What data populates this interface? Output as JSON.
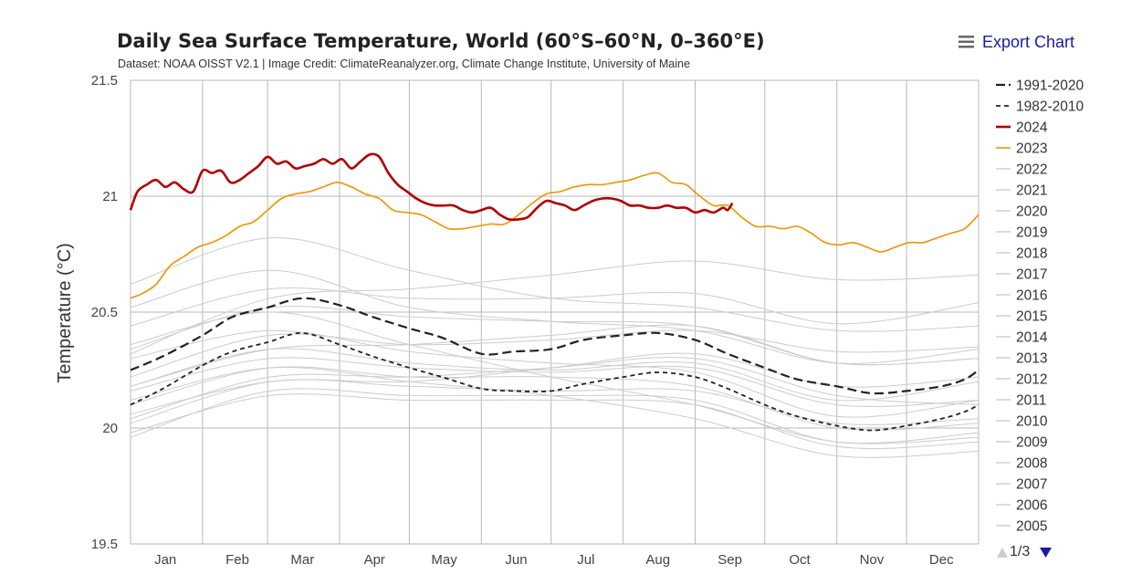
{
  "header": {
    "title": "Daily Sea Surface Temperature, World (60°S–60°N, 0–360°E)",
    "subtitle": "Dataset: NOAA OISST V2.1 | Image Credit: ClimateReanalyzer.org, Climate Change Institute, University of Maine",
    "export_label": "Export Chart",
    "menu_icon": "hamburger-menu-icon"
  },
  "legend": {
    "page_text": "1/3",
    "up_icon": "triangle-up-icon",
    "down_icon": "triangle-down-icon"
  },
  "colors": {
    "y2024": "#b30000",
    "y2023": "#f29200",
    "climatology": "#222222",
    "other_years": "#cccccc",
    "grid": "#b9b9b9",
    "link": "#1a1aa8"
  },
  "chart_data": {
    "type": "line",
    "title": "Daily Sea Surface Temperature, World (60°S–60°N, 0–360°E)",
    "subtitle": "Dataset: NOAA OISST V2.1 | Image Credit: ClimateReanalyzer.org, Climate Change Institute, University of Maine",
    "xlabel": "",
    "ylabel": "Temperature (°C)",
    "x_unit": "day of year",
    "xlim": [
      1,
      366
    ],
    "ylim": [
      19.5,
      21.5
    ],
    "yticks": [
      19.5,
      20,
      20.5,
      21,
      21.5
    ],
    "yticklabels": [
      "19.5",
      "20",
      "20.5",
      "21",
      "21.5"
    ],
    "xticklabels": [
      "Jan",
      "Feb",
      "Mar",
      "Apr",
      "May",
      "Jun",
      "Jul",
      "Aug",
      "Sep",
      "Oct",
      "Nov",
      "Dec"
    ],
    "xtick_days": [
      16,
      47,
      75,
      106,
      136,
      167,
      197,
      228,
      259,
      289,
      320,
      350
    ],
    "month_boundaries": [
      32,
      60,
      91,
      121,
      152,
      182,
      213,
      244,
      274,
      305,
      335
    ],
    "grid": true,
    "legend_position": "right",
    "series": [
      {
        "name": "1991-2020",
        "style": "dashed-long",
        "x": [
          1,
          15,
          32,
          45,
          60,
          75,
          91,
          105,
          121,
          135,
          152,
          166,
          182,
          196,
          213,
          228,
          244,
          258,
          274,
          288,
          305,
          320,
          335,
          350,
          360,
          366
        ],
        "y": [
          20.25,
          20.31,
          20.4,
          20.48,
          20.52,
          20.56,
          20.53,
          20.48,
          20.43,
          20.39,
          20.32,
          20.33,
          20.34,
          20.38,
          20.4,
          20.41,
          20.38,
          20.32,
          20.26,
          20.21,
          20.18,
          20.15,
          20.16,
          20.18,
          20.21,
          20.25
        ]
      },
      {
        "name": "1982-2010",
        "style": "dashed-short",
        "x": [
          1,
          15,
          32,
          45,
          60,
          75,
          91,
          105,
          121,
          135,
          152,
          166,
          182,
          196,
          213,
          228,
          244,
          258,
          274,
          288,
          305,
          320,
          335,
          350,
          360,
          366
        ],
        "y": [
          20.1,
          20.17,
          20.27,
          20.33,
          20.37,
          20.41,
          20.36,
          20.31,
          20.26,
          20.22,
          20.17,
          20.16,
          20.16,
          20.19,
          20.22,
          20.24,
          20.22,
          20.17,
          20.1,
          20.05,
          20.01,
          19.99,
          20.01,
          20.04,
          20.07,
          20.1
        ]
      },
      {
        "name": "2024",
        "x": [
          1,
          4,
          8,
          12,
          16,
          20,
          24,
          28,
          32,
          36,
          40,
          44,
          48,
          52,
          56,
          60,
          64,
          68,
          72,
          76,
          80,
          84,
          88,
          92,
          96,
          100,
          104,
          108,
          112,
          116,
          120,
          124,
          128,
          132,
          136,
          140,
          144,
          148,
          152,
          156,
          160,
          164,
          168,
          172,
          176,
          180,
          184,
          188,
          192,
          196,
          200,
          204,
          208,
          212,
          216,
          220,
          224,
          228,
          232,
          236,
          240,
          244,
          248,
          252,
          256,
          258,
          260
        ],
        "y": [
          20.94,
          21.02,
          21.05,
          21.07,
          21.04,
          21.06,
          21.03,
          21.02,
          21.11,
          21.1,
          21.11,
          21.06,
          21.07,
          21.1,
          21.13,
          21.17,
          21.14,
          21.15,
          21.12,
          21.13,
          21.14,
          21.16,
          21.14,
          21.16,
          21.12,
          21.15,
          21.18,
          21.17,
          21.1,
          21.05,
          21.02,
          20.99,
          20.97,
          20.96,
          20.96,
          20.96,
          20.94,
          20.93,
          20.94,
          20.95,
          20.92,
          20.9,
          20.9,
          20.91,
          20.95,
          20.98,
          20.97,
          20.96,
          20.94,
          20.96,
          20.98,
          20.99,
          20.99,
          20.98,
          20.96,
          20.96,
          20.95,
          20.95,
          20.96,
          20.95,
          20.95,
          20.93,
          20.94,
          20.93,
          20.95,
          20.94,
          20.97
        ]
      },
      {
        "name": "2023",
        "x": [
          1,
          6,
          12,
          18,
          24,
          30,
          36,
          42,
          48,
          54,
          60,
          66,
          72,
          78,
          84,
          90,
          96,
          102,
          108,
          114,
          120,
          126,
          132,
          138,
          144,
          150,
          156,
          162,
          168,
          174,
          180,
          186,
          192,
          198,
          204,
          210,
          216,
          222,
          228,
          234,
          240,
          246,
          252,
          258,
          264,
          270,
          276,
          282,
          288,
          294,
          300,
          306,
          312,
          318,
          324,
          330,
          336,
          342,
          348,
          354,
          360,
          366
        ],
        "y": [
          20.56,
          20.58,
          20.62,
          20.7,
          20.74,
          20.78,
          20.8,
          20.83,
          20.87,
          20.89,
          20.94,
          20.99,
          21.01,
          21.02,
          21.04,
          21.06,
          21.04,
          21.01,
          20.99,
          20.94,
          20.93,
          20.92,
          20.89,
          20.86,
          20.86,
          20.87,
          20.88,
          20.88,
          20.92,
          20.97,
          21.01,
          21.02,
          21.04,
          21.05,
          21.05,
          21.06,
          21.07,
          21.09,
          21.1,
          21.06,
          21.05,
          21.0,
          20.96,
          20.96,
          20.91,
          20.87,
          20.87,
          20.86,
          20.87,
          20.84,
          20.8,
          20.79,
          20.8,
          20.78,
          20.76,
          20.78,
          20.8,
          20.8,
          20.82,
          20.84,
          20.86,
          20.92
        ]
      },
      {
        "name": "2022",
        "x": [
          1,
          61,
          121,
          182,
          244,
          305,
          366
        ],
        "y": [
          20.3,
          20.42,
          20.33,
          20.28,
          20.24,
          20.05,
          20.12
        ]
      },
      {
        "name": "2021",
        "x": [
          1,
          61,
          121,
          182,
          244,
          305,
          366
        ],
        "y": [
          20.18,
          20.34,
          20.28,
          20.25,
          20.28,
          20.12,
          20.2
        ]
      },
      {
        "name": "2020",
        "x": [
          1,
          61,
          121,
          182,
          244,
          305,
          366
        ],
        "y": [
          20.52,
          20.68,
          20.52,
          20.46,
          20.42,
          20.28,
          20.34
        ]
      },
      {
        "name": "2019",
        "x": [
          1,
          61,
          121,
          182,
          244,
          305,
          366
        ],
        "y": [
          20.44,
          20.6,
          20.56,
          20.56,
          20.58,
          20.45,
          20.54
        ]
      },
      {
        "name": "2018",
        "x": [
          1,
          61,
          121,
          182,
          244,
          305,
          366
        ],
        "y": [
          20.22,
          20.4,
          20.36,
          20.38,
          20.42,
          20.33,
          20.35
        ]
      },
      {
        "name": "2017",
        "x": [
          1,
          61,
          121,
          182,
          244,
          305,
          366
        ],
        "y": [
          20.34,
          20.52,
          20.48,
          20.46,
          20.44,
          20.28,
          20.3
        ]
      },
      {
        "name": "2016",
        "x": [
          1,
          61,
          121,
          182,
          244,
          305,
          366
        ],
        "y": [
          20.62,
          20.82,
          20.68,
          20.56,
          20.52,
          20.42,
          20.44
        ]
      },
      {
        "name": "2015",
        "x": [
          1,
          61,
          121,
          182,
          244,
          305,
          366
        ],
        "y": [
          20.32,
          20.56,
          20.6,
          20.66,
          20.72,
          20.64,
          20.66
        ]
      },
      {
        "name": "2014",
        "x": [
          1,
          61,
          121,
          182,
          244,
          305,
          366
        ],
        "y": [
          20.18,
          20.34,
          20.36,
          20.4,
          20.44,
          20.28,
          20.3
        ]
      },
      {
        "name": "2013",
        "x": [
          1,
          61,
          121,
          182,
          244,
          305,
          366
        ],
        "y": [
          20.16,
          20.3,
          20.26,
          20.24,
          20.26,
          20.1,
          20.12
        ]
      },
      {
        "name": "2012",
        "x": [
          1,
          61,
          121,
          182,
          244,
          305,
          366
        ],
        "y": [
          20.04,
          20.22,
          20.22,
          20.26,
          20.3,
          20.14,
          20.1
        ]
      },
      {
        "name": "2011",
        "x": [
          1,
          61,
          121,
          182,
          244,
          305,
          366
        ],
        "y": [
          19.96,
          20.16,
          20.14,
          20.14,
          20.12,
          19.94,
          19.98
        ]
      },
      {
        "name": "2010",
        "x": [
          1,
          61,
          121,
          182,
          244,
          305,
          366
        ],
        "y": [
          20.36,
          20.5,
          20.36,
          20.22,
          20.1,
          19.94,
          19.96
        ]
      },
      {
        "name": "2009",
        "x": [
          1,
          61,
          121,
          182,
          244,
          305,
          366
        ],
        "y": [
          20.06,
          20.2,
          20.2,
          20.26,
          20.32,
          20.18,
          20.22
        ]
      },
      {
        "name": "2008",
        "x": [
          1,
          61,
          121,
          182,
          244,
          305,
          366
        ],
        "y": [
          19.98,
          20.14,
          20.12,
          20.12,
          20.1,
          19.92,
          19.94
        ]
      },
      {
        "name": "2007",
        "x": [
          1,
          61,
          121,
          182,
          244,
          305,
          366
        ],
        "y": [
          20.12,
          20.26,
          20.2,
          20.14,
          20.04,
          19.88,
          19.9
        ]
      },
      {
        "name": "2006",
        "x": [
          1,
          61,
          121,
          182,
          244,
          305,
          366
        ],
        "y": [
          20.02,
          20.2,
          20.18,
          20.16,
          20.16,
          20.02,
          20.04
        ]
      },
      {
        "name": "2005",
        "x": [
          1,
          61,
          121,
          182,
          244,
          305,
          366
        ],
        "y": [
          20.1,
          20.26,
          20.22,
          20.22,
          20.18,
          20.0,
          20.02
        ]
      }
    ]
  }
}
